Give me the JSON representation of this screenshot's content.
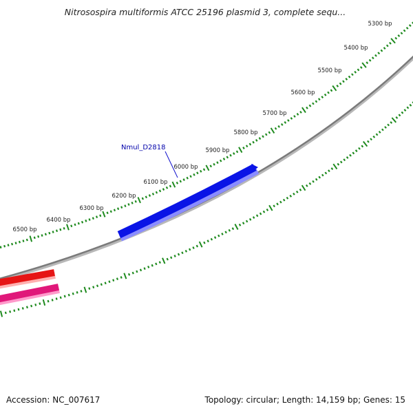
{
  "title": "Nitrosospira multiformis ATCC 25196 plasmid 3, complete sequ...",
  "footer": {
    "accession": "Accession: NC_007617",
    "summary": "Topology: circular; Length: 14,159 bp; Genes: 15"
  },
  "colors": {
    "tick": "#1e8a1e",
    "backbone": "#7a7a7a",
    "gene_blue": "#0a14e6",
    "gene_red": "#e61414",
    "gene_pink": "#e0187a",
    "label_line": "#1010cc"
  },
  "tick_labels": [
    {
      "text": "5300 bp"
    },
    {
      "text": "5400 bp"
    },
    {
      "text": "5500 bp"
    },
    {
      "text": "5600 bp"
    },
    {
      "text": "5700 bp"
    },
    {
      "text": "5800 bp"
    },
    {
      "text": "5900 bp"
    },
    {
      "text": "6000 bp"
    },
    {
      "text": "6100 bp"
    },
    {
      "text": "6200 bp"
    },
    {
      "text": "6300 bp"
    },
    {
      "text": "6400 bp"
    },
    {
      "text": "6500 bp"
    }
  ],
  "genes": [
    {
      "label": "Nmul_D2818"
    }
  ]
}
